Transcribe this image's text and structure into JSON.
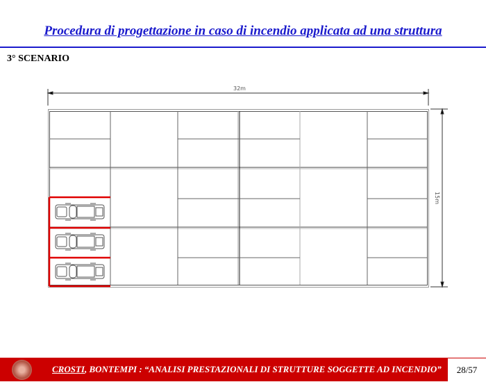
{
  "header": {
    "title": "Procedura di progettazione in caso di incendio applicata ad una struttura"
  },
  "section": {
    "label": "3° SCENARIO"
  },
  "drawing": {
    "width_label": "32m",
    "height_label": "15m",
    "highlight_color": "#e00000"
  },
  "footer": {
    "author_underlined": "CROSTI",
    "rest": ", BONTEMPI : “ANALISI PRESTAZIONALI DI STRUTTURE SOGGETTE AD INCENDIO”",
    "page": "28/57",
    "bar_color": "#cc0000"
  }
}
